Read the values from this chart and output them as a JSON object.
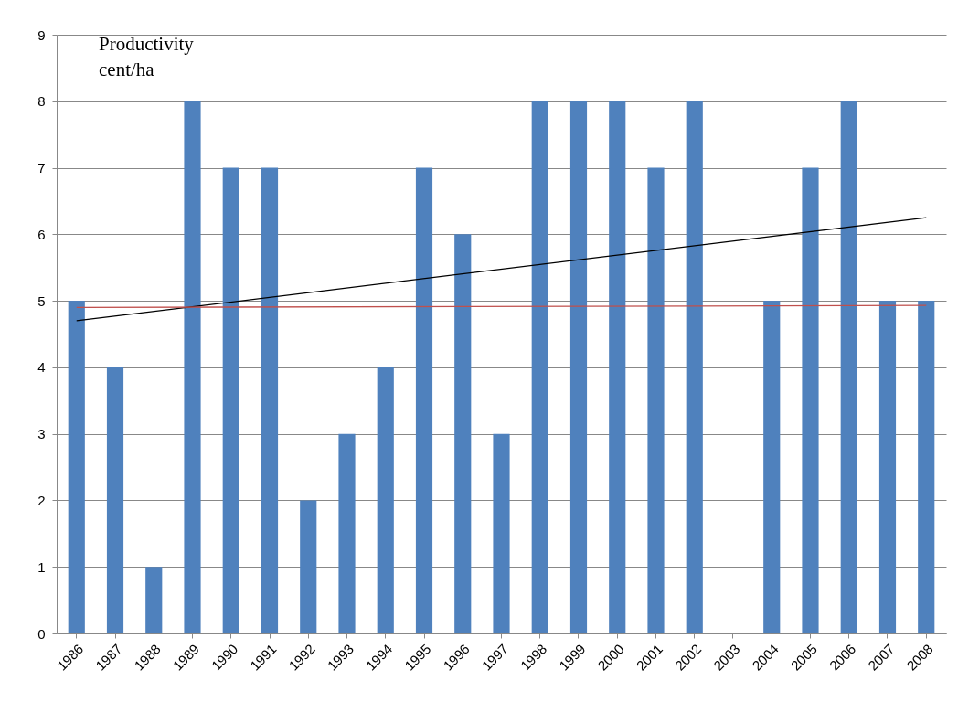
{
  "chart_data": {
    "type": "bar",
    "annotations": [
      "Productivity\ncent/ha"
    ],
    "categories": [
      "1986",
      "1987",
      "1988",
      "1989",
      "1990",
      "1991",
      "1992",
      "1993",
      "1994",
      "1995",
      "1996",
      "1997",
      "1998",
      "1999",
      "2000",
      "2001",
      "2002",
      "2003",
      "2004",
      "2005",
      "2006",
      "2007",
      "2008"
    ],
    "series": [
      {
        "color": "#4f81bd",
        "values": [
          5,
          4,
          1,
          8,
          7,
          7,
          2,
          3,
          4,
          7,
          6,
          3,
          8,
          8,
          8,
          7,
          8,
          0,
          5,
          7,
          8,
          5,
          5
        ]
      },
      {
        "type": "line",
        "color": "#000000",
        "values": [
          4.7,
          null,
          null,
          null,
          null,
          null,
          null,
          null,
          null,
          null,
          null,
          null,
          null,
          null,
          null,
          null,
          null,
          null,
          null,
          null,
          null,
          null,
          6.25
        ]
      },
      {
        "type": "line",
        "color": "#c0504d",
        "values": [
          4.9,
          null,
          null,
          null,
          null,
          null,
          null,
          null,
          null,
          null,
          null,
          null,
          null,
          null,
          null,
          null,
          null,
          null,
          null,
          null,
          null,
          null,
          4.93
        ]
      }
    ],
    "ylim": [
      0,
      9
    ],
    "yticks": [
      0,
      1,
      2,
      3,
      4,
      5,
      6,
      7,
      8,
      9
    ],
    "grid": "y",
    "line_style": "solid"
  }
}
